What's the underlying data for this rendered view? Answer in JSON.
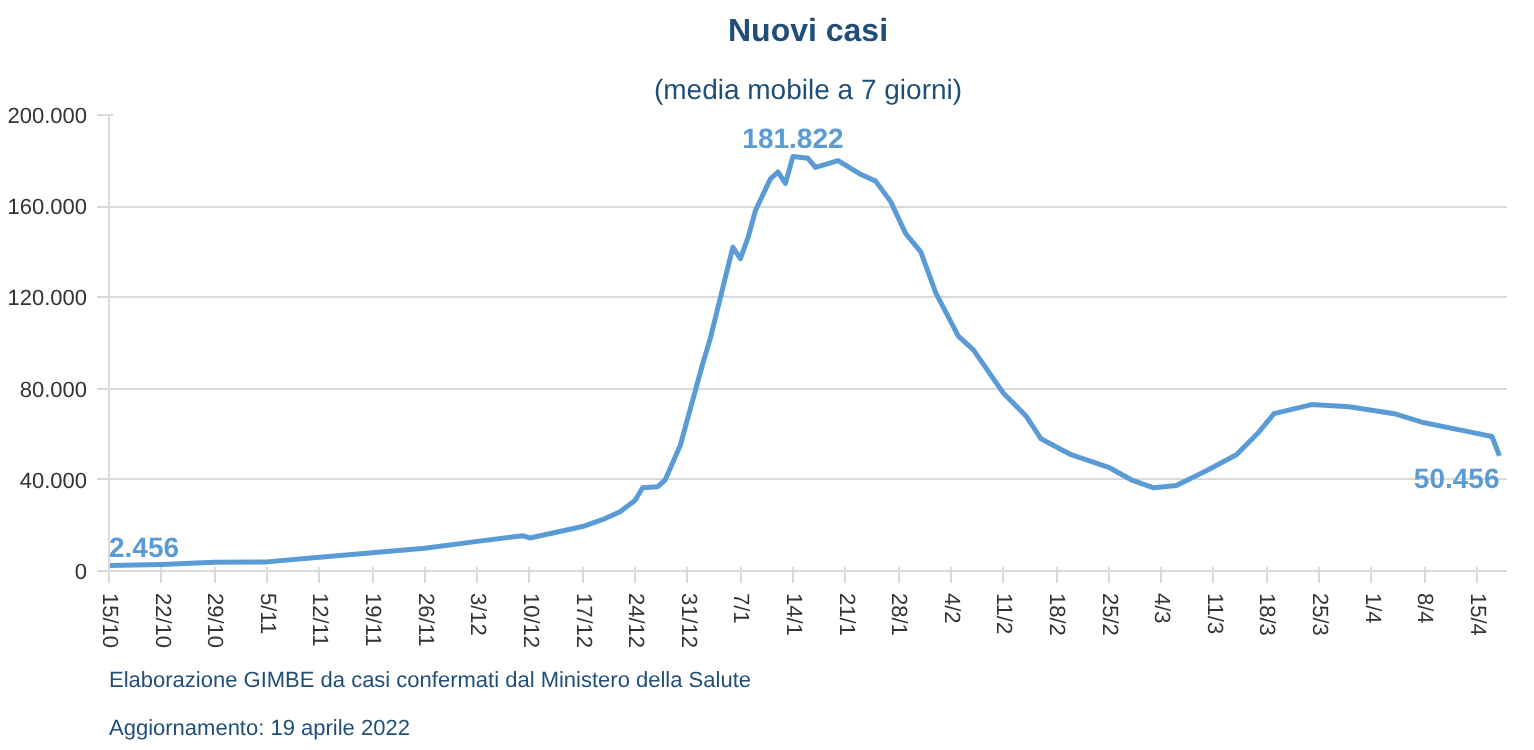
{
  "chart_data": {
    "type": "line",
    "title": "Nuovi casi",
    "subtitle": "(media mobile a 7 giorni)",
    "x": [
      "2021-10-15",
      "2021-10-22",
      "2021-10-29",
      "2021-11-05",
      "2021-11-12",
      "2021-11-19",
      "2021-11-26",
      "2021-12-03",
      "2021-12-09",
      "2021-12-10",
      "2021-12-17",
      "2021-12-20",
      "2021-12-22",
      "2021-12-24",
      "2021-12-25",
      "2021-12-27",
      "2021-12-28",
      "2021-12-30",
      "2022-01-02",
      "2022-01-03",
      "2022-01-06",
      "2022-01-07",
      "2022-01-08",
      "2022-01-09",
      "2022-01-11",
      "2022-01-12",
      "2022-01-13",
      "2022-01-14",
      "2022-01-16",
      "2022-01-17",
      "2022-01-20",
      "2022-01-23",
      "2022-01-25",
      "2022-01-27",
      "2022-01-29",
      "2022-01-31",
      "2022-02-02",
      "2022-02-05",
      "2022-02-07",
      "2022-02-11",
      "2022-02-14",
      "2022-02-16",
      "2022-02-20",
      "2022-02-25",
      "2022-02-28",
      "2022-03-03",
      "2022-03-06",
      "2022-03-10",
      "2022-03-14",
      "2022-03-17",
      "2022-03-19",
      "2022-03-24",
      "2022-03-29",
      "2022-04-04",
      "2022-04-08",
      "2022-04-14",
      "2022-04-17",
      "2022-04-18"
    ],
    "series": [
      {
        "color": "#5b9bd5",
        "values": [
          2456,
          2900,
          3800,
          4000,
          6000,
          8000,
          10000,
          13000,
          15500,
          14500,
          19500,
          23000,
          26000,
          31000,
          36500,
          37000,
          40000,
          55000,
          91000,
          102000,
          142000,
          137000,
          146000,
          158000,
          172000,
          175000,
          170000,
          181822,
          181000,
          177000,
          180000,
          174000,
          171000,
          162000,
          148000,
          140000,
          122000,
          103000,
          97000,
          78000,
          68000,
          58000,
          51000,
          45500,
          40000,
          36500,
          37500,
          44000,
          51000,
          61000,
          69000,
          73000,
          72000,
          69000,
          65000,
          61000,
          59000,
          50456
        ]
      }
    ],
    "xlim": [
      "2021-10-15",
      "2022-04-19"
    ],
    "xticks": [
      {
        "value": "2021-10-15",
        "label": "15/10"
      },
      {
        "value": "2021-10-22",
        "label": "22/10"
      },
      {
        "value": "2021-10-29",
        "label": "29/10"
      },
      {
        "value": "2021-11-05",
        "label": "5/11"
      },
      {
        "value": "2021-11-12",
        "label": "12/11"
      },
      {
        "value": "2021-11-19",
        "label": "19/11"
      },
      {
        "value": "2021-11-26",
        "label": "26/11"
      },
      {
        "value": "2021-12-03",
        "label": "3/12"
      },
      {
        "value": "2021-12-10",
        "label": "10/12"
      },
      {
        "value": "2021-12-17",
        "label": "17/12"
      },
      {
        "value": "2021-12-24",
        "label": "24/12"
      },
      {
        "value": "2021-12-31",
        "label": "31/12"
      },
      {
        "value": "2022-01-07",
        "label": "7/1"
      },
      {
        "value": "2022-01-14",
        "label": "14/1"
      },
      {
        "value": "2022-01-21",
        "label": "21/1"
      },
      {
        "value": "2022-01-28",
        "label": "28/1"
      },
      {
        "value": "2022-02-04",
        "label": "4/2"
      },
      {
        "value": "2022-02-11",
        "label": "11/2"
      },
      {
        "value": "2022-02-18",
        "label": "18/2"
      },
      {
        "value": "2022-02-25",
        "label": "25/2"
      },
      {
        "value": "2022-03-04",
        "label": "4/3"
      },
      {
        "value": "2022-03-11",
        "label": "11/3"
      },
      {
        "value": "2022-03-18",
        "label": "18/3"
      },
      {
        "value": "2022-03-25",
        "label": "25/3"
      },
      {
        "value": "2022-04-01",
        "label": "1/4"
      },
      {
        "value": "2022-04-08",
        "label": "8/4"
      },
      {
        "value": "2022-04-15",
        "label": "15/4"
      }
    ],
    "ylim": [
      0,
      200000
    ],
    "yticks": [
      {
        "value": 0,
        "label": "0"
      },
      {
        "value": 40000,
        "label": "40.000"
      },
      {
        "value": 80000,
        "label": "80.000"
      },
      {
        "value": 120000,
        "label": "120.000"
      },
      {
        "value": 160000,
        "label": "160.000"
      },
      {
        "value": 200000,
        "label": "200.000"
      }
    ],
    "grid": "y",
    "marker": "none",
    "line_style": "solid",
    "annotations": [
      {
        "text": "2.456",
        "x": "2021-10-15",
        "y": 2456
      },
      {
        "text": "181.822",
        "x": "2022-01-14",
        "y": 181822
      },
      {
        "text": "50.456",
        "x": "2022-04-18",
        "y": 50456
      },
      "Elaborazione GIMBE da casi confermati dal Ministero della Salute",
      "Aggiornamento: 19 aprile 2022"
    ]
  }
}
